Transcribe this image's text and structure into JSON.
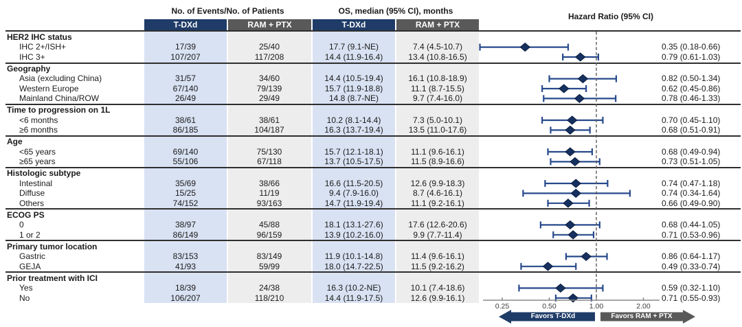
{
  "figure": {
    "col_groups": {
      "events": "No. of Events/No. of Patients",
      "os": "OS, median (95% CI), months",
      "hr": "Hazard Ratio (95% CI)"
    },
    "subheaders": {
      "tdxd": "T-DXd",
      "ram": "RAM + PTX"
    },
    "axis_tick_labels": [
      "0.25",
      "0.50",
      "1.00",
      "2.00"
    ],
    "favors_left": "Favors T-DXd",
    "favors_right": "Favors RAM + PTX"
  },
  "colors": {
    "navy_header": "#1f3c68",
    "gray_header": "#595959",
    "light_blue_col": "#d9e2f3",
    "light_gray_col": "#ededed",
    "ci_bar": "#27498c",
    "diamond_fill": "#16305f",
    "diamond_stroke": "#0a1e3f",
    "dashed_reference": "#5a5a5a",
    "axis_line": "#888888",
    "divider": "#2e2e2e",
    "favors_left_arrow": "#1f3c68",
    "favors_right_arrow": "#595959"
  },
  "chart_data": {
    "type": "forest",
    "x_scale": "log2",
    "x_ticks": [
      0.25,
      0.5,
      1.0,
      2.0
    ],
    "reference_line": 1.0,
    "xlabel": "Hazard Ratio (95% CI)",
    "sections": [
      {
        "name": "HER2 IHC status",
        "rows": [
          {
            "label": "IHC 2+/ISH+",
            "events_tdxd": "17/39",
            "events_ram": "25/40",
            "os_tdxd": "17.7 (9.1-NE)",
            "os_ram": "7.4 (4.5-10.7)",
            "hr": 0.35,
            "lo": 0.18,
            "hi": 0.66,
            "hr_text": "0.35 (0.18-0.66)"
          },
          {
            "label": "IHC 3+",
            "events_tdxd": "107/207",
            "events_ram": "117/208",
            "os_tdxd": "14.4 (11.9-16.4)",
            "os_ram": "13.4 (10.8-16.5)",
            "hr": 0.79,
            "lo": 0.61,
            "hi": 1.03,
            "hr_text": "0.79 (0.61-1.03)"
          }
        ]
      },
      {
        "name": "Geography",
        "rows": [
          {
            "label": "Asia (excluding China)",
            "events_tdxd": "31/57",
            "events_ram": "34/60",
            "os_tdxd": "14.4 (10.5-19.4)",
            "os_ram": "16.1 (10.8-18.9)",
            "hr": 0.82,
            "lo": 0.5,
            "hi": 1.34,
            "hr_text": "0.82 (0.50-1.34)"
          },
          {
            "label": "Western Europe",
            "events_tdxd": "67/140",
            "events_ram": "79/139",
            "os_tdxd": "15.7 (11.9-18.8)",
            "os_ram": "11.1 (8.7-15.5)",
            "hr": 0.62,
            "lo": 0.45,
            "hi": 0.86,
            "hr_text": "0.62 (0.45-0.86)"
          },
          {
            "label": "Mainland China/ROW",
            "events_tdxd": "26/49",
            "events_ram": "29/49",
            "os_tdxd": "14.8 (8.7-NE)",
            "os_ram": "9.7 (7.4-16.0)",
            "hr": 0.78,
            "lo": 0.46,
            "hi": 1.33,
            "hr_text": "0.78 (0.46-1.33)"
          }
        ]
      },
      {
        "name": "Time to progression on 1L",
        "rows": [
          {
            "label": "<6 months",
            "events_tdxd": "38/61",
            "events_ram": "38/61",
            "os_tdxd": "10.2 (8.1-14.4)",
            "os_ram": "7.3 (5.0-10.1)",
            "hr": 0.7,
            "lo": 0.45,
            "hi": 1.1,
            "hr_text": "0.70 (0.45-1.10)"
          },
          {
            "label": "≥6 months",
            "events_tdxd": "86/185",
            "events_ram": "104/187",
            "os_tdxd": "16.3 (13.7-19.4)",
            "os_ram": "13.5 (11.0-17.6)",
            "hr": 0.68,
            "lo": 0.51,
            "hi": 0.91,
            "hr_text": "0.68 (0.51-0.91)"
          }
        ]
      },
      {
        "name": "Age",
        "rows": [
          {
            "label": "<65 years",
            "events_tdxd": "69/140",
            "events_ram": "75/130",
            "os_tdxd": "15.7 (12.1-18.1)",
            "os_ram": "11.1 (9.6-16.1)",
            "hr": 0.68,
            "lo": 0.49,
            "hi": 0.94,
            "hr_text": "0.68 (0.49-0.94)"
          },
          {
            "label": "≥65 years",
            "events_tdxd": "55/106",
            "events_ram": "67/118",
            "os_tdxd": "13.7 (10.5-17.5)",
            "os_ram": "11.5 (8.9-16.6)",
            "hr": 0.73,
            "lo": 0.51,
            "hi": 1.05,
            "hr_text": "0.73 (0.51-1.05)"
          }
        ]
      },
      {
        "name": "Histologic subtype",
        "rows": [
          {
            "label": "Intestinal",
            "events_tdxd": "35/69",
            "events_ram": "38/66",
            "os_tdxd": "16.6 (11.5-20.5)",
            "os_ram": "12.6 (9.9-18.3)",
            "hr": 0.74,
            "lo": 0.47,
            "hi": 1.18,
            "hr_text": "0.74 (0.47-1.18)"
          },
          {
            "label": "Diffuse",
            "events_tdxd": "15/25",
            "events_ram": "11/19",
            "os_tdxd": "9.4 (7.9-16.0)",
            "os_ram": "8.7 (4.6-16.1)",
            "hr": 0.74,
            "lo": 0.34,
            "hi": 1.64,
            "hr_text": "0.74 (0.34-1.64)"
          },
          {
            "label": "Others",
            "events_tdxd": "74/152",
            "events_ram": "93/163",
            "os_tdxd": "14.7 (11.9-19.4)",
            "os_ram": "11.1 (9.2-16.1)",
            "hr": 0.66,
            "lo": 0.49,
            "hi": 0.9,
            "hr_text": "0.66 (0.49-0.90)"
          }
        ]
      },
      {
        "name": "ECOG PS",
        "rows": [
          {
            "label": "0",
            "events_tdxd": "38/97",
            "events_ram": "45/88",
            "os_tdxd": "18.1 (13.1-27.6)",
            "os_ram": "17.6 (12.6-20.6)",
            "hr": 0.68,
            "lo": 0.44,
            "hi": 1.05,
            "hr_text": "0.68 (0.44-1.05)"
          },
          {
            "label": "1 or 2",
            "events_tdxd": "86/149",
            "events_ram": "96/159",
            "os_tdxd": "13.9 (10.2-16.0)",
            "os_ram": "9.9 (7.7-11.4)",
            "hr": 0.71,
            "lo": 0.53,
            "hi": 0.96,
            "hr_text": "0.71 (0.53-0.96)"
          }
        ]
      },
      {
        "name": "Primary tumor location",
        "rows": [
          {
            "label": "Gastric",
            "events_tdxd": "83/153",
            "events_ram": "83/149",
            "os_tdxd": "11.9 (10.1-14.8)",
            "os_ram": "11.4 (9.6-16.1)",
            "hr": 0.86,
            "lo": 0.64,
            "hi": 1.17,
            "hr_text": "0.86 (0.64-1.17)"
          },
          {
            "label": "GEJA",
            "events_tdxd": "41/93",
            "events_ram": "59/99",
            "os_tdxd": "18.0 (14.7-22.5)",
            "os_ram": "11.5 (9.2-16.2)",
            "hr": 0.49,
            "lo": 0.33,
            "hi": 0.74,
            "hr_text": "0.49 (0.33-0.74)"
          }
        ]
      },
      {
        "name": "Prior treatment with ICI",
        "rows": [
          {
            "label": "Yes",
            "events_tdxd": "18/39",
            "events_ram": "24/38",
            "os_tdxd": "16.3 (10.2-NE)",
            "os_ram": "10.1 (7.4-18.6)",
            "hr": 0.59,
            "lo": 0.32,
            "hi": 1.1,
            "hr_text": "0.59 (0.32-1.10)"
          },
          {
            "label": "No",
            "events_tdxd": "106/207",
            "events_ram": "118/210",
            "os_tdxd": "14.4 (11.9-17.5)",
            "os_ram": "12.6 (9.9-16.1)",
            "hr": 0.71,
            "lo": 0.55,
            "hi": 0.93,
            "hr_text": "0.71 (0.55-0.93)"
          }
        ]
      }
    ]
  }
}
